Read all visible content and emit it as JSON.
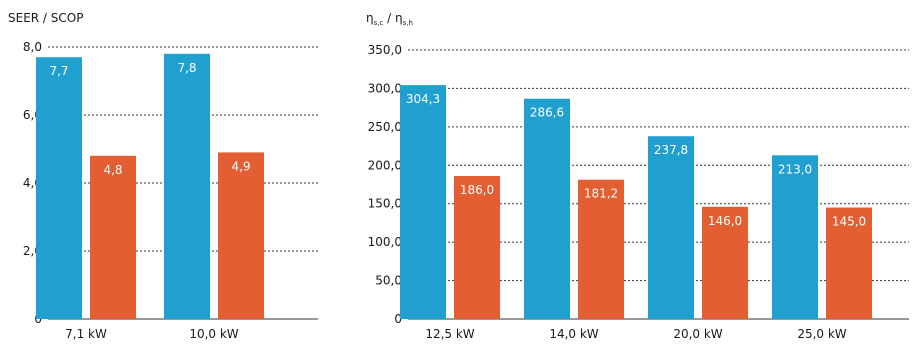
{
  "colors": {
    "blue": "#1fa0cf",
    "orange": "#e35e33"
  },
  "chart_data": [
    {
      "type": "bar",
      "ylabel": "SEER / SCOP",
      "ylim": [
        0,
        8
      ],
      "yticks": [
        "0",
        "2,0",
        "4,0",
        "6,0",
        "8,0"
      ],
      "categories": [
        "7,1 kW",
        "10,0 kW"
      ],
      "series": [
        {
          "values": [
            7.7,
            7.8
          ],
          "labels": [
            "7,7",
            "7,8"
          ],
          "color": "#1fa0cf"
        },
        {
          "values": [
            4.8,
            4.9
          ],
          "labels": [
            "4,8",
            "4,9"
          ],
          "color": "#e35e33"
        }
      ],
      "grid": true
    },
    {
      "type": "bar",
      "ylabel_main": "η",
      "ylabel_sub1": "s,c",
      "ylabel_sep": " / η",
      "ylabel_sub2": "s,h",
      "ylim": [
        0,
        350
      ],
      "yticks": [
        "0",
        "50,0",
        "100,0",
        "150,0",
        "200,0",
        "250,0",
        "300,0",
        "350,0"
      ],
      "categories": [
        "12,5 kW",
        "14,0 kW",
        "20,0 kW",
        "25,0 kW"
      ],
      "series": [
        {
          "values": [
            304.3,
            286.6,
            237.8,
            213.0
          ],
          "labels": [
            "304,3",
            "286,6",
            "237,8",
            "213,0"
          ],
          "color": "#1fa0cf"
        },
        {
          "values": [
            186.0,
            181.2,
            146.0,
            145.0
          ],
          "labels": [
            "186,0",
            "181,2",
            "146,0",
            "145,0"
          ],
          "color": "#e35e33"
        }
      ],
      "grid": true
    }
  ]
}
